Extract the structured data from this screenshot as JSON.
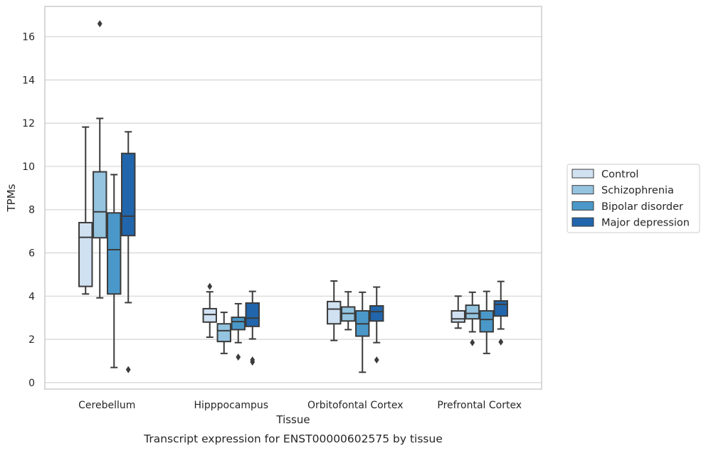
{
  "chart_data": {
    "type": "boxplot",
    "xlabel": "Tissue",
    "ylabel": "TPMs",
    "caption": "Transcript expression for ENST00000602575 by tissue",
    "ylim": [
      -0.3,
      17.4
    ],
    "yticks": [
      0,
      2,
      4,
      6,
      8,
      10,
      12,
      14,
      16
    ],
    "categories": [
      "Cerebellum",
      "Hipppocampus",
      "Orbitofontal Cortex",
      "Prefrontal Cortex"
    ],
    "grid": "horizontal",
    "legend_placement": "right",
    "series": [
      {
        "name": "Control",
        "color": "#d0e1f2",
        "boxes": [
          {
            "whisker_low": 4.1,
            "q1": 4.45,
            "median": 6.72,
            "q3": 7.4,
            "whisker_high": 11.82,
            "outliers": []
          },
          {
            "whisker_low": 2.1,
            "q1": 2.8,
            "median": 3.15,
            "q3": 3.42,
            "whisker_high": 4.2,
            "outliers": [
              4.45
            ]
          },
          {
            "whisker_low": 1.95,
            "q1": 2.72,
            "median": 3.4,
            "q3": 3.75,
            "whisker_high": 4.7,
            "outliers": []
          },
          {
            "whisker_low": 2.52,
            "q1": 2.8,
            "median": 2.95,
            "q3": 3.32,
            "whisker_high": 4.0,
            "outliers": []
          }
        ]
      },
      {
        "name": "Schizophrenia",
        "color": "#94c4df",
        "boxes": [
          {
            "whisker_low": 3.92,
            "q1": 6.7,
            "median": 7.9,
            "q3": 9.75,
            "whisker_high": 12.22,
            "outliers": [
              16.6
            ]
          },
          {
            "whisker_low": 1.35,
            "q1": 1.9,
            "median": 2.4,
            "q3": 2.72,
            "whisker_high": 3.25,
            "outliers": []
          },
          {
            "whisker_low": 2.45,
            "q1": 2.85,
            "median": 3.2,
            "q3": 3.5,
            "whisker_high": 4.2,
            "outliers": []
          },
          {
            "whisker_low": 2.35,
            "q1": 2.95,
            "median": 3.2,
            "q3": 3.58,
            "whisker_high": 4.18,
            "outliers": [
              1.85
            ]
          }
        ]
      },
      {
        "name": "Bipolar disorder",
        "color": "#4a98c9",
        "boxes": [
          {
            "whisker_low": 0.7,
            "q1": 4.1,
            "median": 6.15,
            "q3": 7.85,
            "whisker_high": 9.62,
            "outliers": []
          },
          {
            "whisker_low": 1.85,
            "q1": 2.45,
            "median": 2.82,
            "q3": 3.02,
            "whisker_high": 3.65,
            "outliers": [
              1.18
            ]
          },
          {
            "whisker_low": 0.48,
            "q1": 2.15,
            "median": 2.72,
            "q3": 3.32,
            "whisker_high": 4.18,
            "outliers": []
          },
          {
            "whisker_low": 1.35,
            "q1": 2.35,
            "median": 2.92,
            "q3": 3.32,
            "whisker_high": 4.22,
            "outliers": []
          }
        ]
      },
      {
        "name": "Major depression",
        "color": "#2166ac",
        "boxes": [
          {
            "whisker_low": 3.7,
            "q1": 6.8,
            "median": 7.7,
            "q3": 10.6,
            "whisker_high": 11.6,
            "outliers": [
              0.6
            ]
          },
          {
            "whisker_low": 2.02,
            "q1": 2.6,
            "median": 2.98,
            "q3": 3.68,
            "whisker_high": 4.22,
            "outliers": [
              0.95,
              1.05
            ]
          },
          {
            "whisker_low": 1.85,
            "q1": 2.85,
            "median": 3.28,
            "q3": 3.55,
            "whisker_high": 4.42,
            "outliers": [
              1.05
            ]
          },
          {
            "whisker_low": 2.48,
            "q1": 3.08,
            "median": 3.62,
            "q3": 3.78,
            "whisker_high": 4.68,
            "outliers": [
              1.88
            ]
          }
        ]
      }
    ]
  }
}
